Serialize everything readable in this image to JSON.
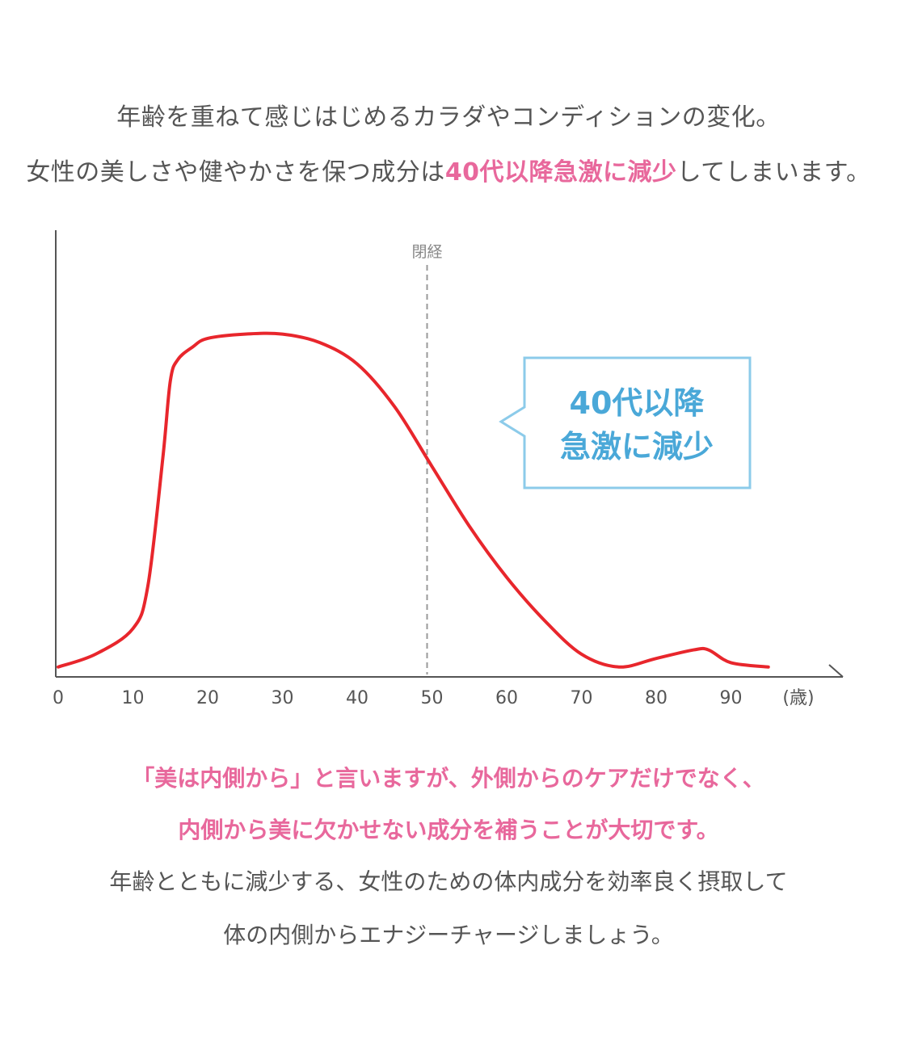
{
  "intro": {
    "line1": "年齢を重ねて感じはじめるカラダやコンディションの変化。",
    "line2_pre": "女性の美しさや健やかさを保つ成分は",
    "line2_hl": "40代以降急激に減少",
    "line2_post": "してしまいます。"
  },
  "chart_data": {
    "type": "line",
    "title": "",
    "xlabel": "(歳)",
    "ylabel": "",
    "xlim": [
      0,
      100
    ],
    "ylim": [
      0,
      100
    ],
    "x_ticks": [
      "0",
      "10",
      "20",
      "30",
      "40",
      "50",
      "60",
      "70",
      "80",
      "90"
    ],
    "x_unit_label": "(歳)",
    "series": [
      {
        "color": "#e8262c",
        "x": [
          0,
          5,
          10,
          12,
          14,
          15,
          16,
          18,
          20,
          25,
          30,
          35,
          40,
          45,
          50,
          55,
          60,
          65,
          70,
          75,
          80,
          85,
          87,
          90,
          95
        ],
        "y": [
          1,
          4,
          10,
          20,
          50,
          68,
          73,
          76,
          78,
          79,
          79,
          77,
          72,
          62,
          48,
          34,
          22,
          12,
          4,
          1,
          3,
          5,
          5,
          2,
          1
        ]
      }
    ],
    "vline": {
      "x": 50,
      "label": "閉経",
      "color": "#999999"
    },
    "callout": {
      "line1": "40代以降",
      "line2": "急激に減少",
      "color": "#4aa8d8"
    }
  },
  "outro": {
    "line1": "「美は内側から」と言いますが、外側からのケアだけでなく、",
    "line2": "内側から美に欠かせない成分を補うことが大切です。",
    "line3": "年齢とともに減少する、女性のための体内成分を効率良く摂取して",
    "line4": "体の内側からエナジーチャージしましょう。"
  }
}
